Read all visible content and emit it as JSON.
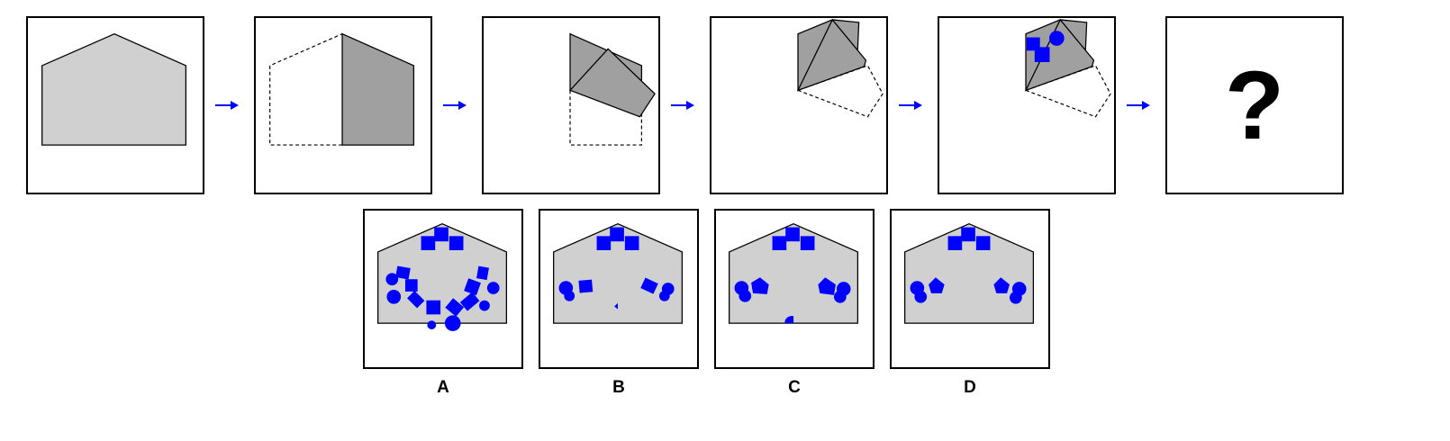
{
  "question": {
    "step_count": 5,
    "unknown_panel_text": "?"
  },
  "options": [
    {
      "label": "A"
    },
    {
      "label": "B"
    },
    {
      "label": "C"
    },
    {
      "label": "D"
    }
  ],
  "colors": {
    "paper": "#d0d0d0",
    "folded_paper": "#a0a0a0",
    "hole": "#0000ff",
    "arrow": "#0000ff",
    "outline": "#000000"
  }
}
